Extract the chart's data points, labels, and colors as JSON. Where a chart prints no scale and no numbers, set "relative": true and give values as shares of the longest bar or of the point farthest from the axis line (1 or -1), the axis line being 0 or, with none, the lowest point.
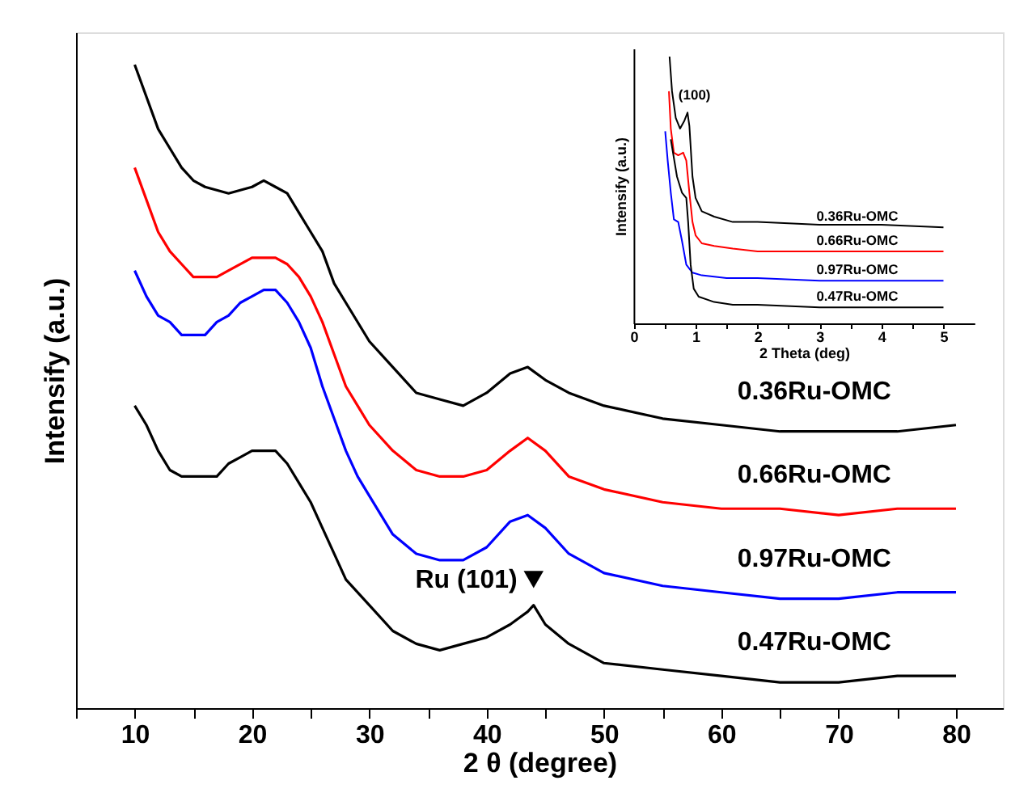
{
  "chart_data": [
    {
      "type": "line",
      "relative": true,
      "xlabel": "2 θ (degree)",
      "ylabel": "Intensify (a.u.)",
      "xlim": [
        5,
        84
      ],
      "xticks": [
        {
          "value": 5,
          "label": null
        },
        10,
        {
          "value": 15,
          "label": null
        },
        20,
        {
          "value": 25,
          "label": null
        },
        30,
        {
          "value": 35,
          "label": null
        },
        40,
        {
          "value": 45,
          "label": null
        },
        50,
        {
          "value": 55,
          "label": null
        },
        60,
        {
          "value": 65,
          "label": null
        },
        70,
        {
          "value": 75,
          "label": null
        },
        80
      ],
      "tick_labels": "x",
      "grid": false,
      "legend": false,
      "marker": "none",
      "line_style": "solid",
      "series": [
        {
          "name": "0.36Ru-OMC",
          "color": "#000000",
          "x": [
            10,
            11,
            12,
            13,
            14,
            15,
            16,
            18,
            20,
            21,
            22,
            23,
            24,
            25,
            26,
            27,
            28,
            30,
            32,
            34,
            36,
            38,
            40,
            42,
            43.5,
            45,
            47,
            50,
            55,
            60,
            65,
            70,
            75,
            80
          ],
          "values": [
            1.0,
            0.95,
            0.9,
            0.87,
            0.84,
            0.82,
            0.81,
            0.8,
            0.81,
            0.82,
            0.81,
            0.8,
            0.77,
            0.74,
            0.71,
            0.66,
            0.63,
            0.57,
            0.53,
            0.49,
            0.48,
            0.47,
            0.49,
            0.52,
            0.53,
            0.51,
            0.49,
            0.47,
            0.45,
            0.44,
            0.43,
            0.43,
            0.43,
            0.44
          ]
        },
        {
          "name": "0.66Ru-OMC",
          "color": "#ff0000",
          "x": [
            10,
            11,
            12,
            13,
            14,
            15,
            16,
            17,
            18,
            20,
            22,
            23,
            24,
            25,
            26,
            27,
            28,
            29,
            30,
            32,
            34,
            36,
            38,
            40,
            42,
            43.5,
            45,
            47,
            50,
            55,
            60,
            65,
            70,
            75,
            80
          ],
          "values": [
            0.84,
            0.79,
            0.74,
            0.71,
            0.69,
            0.67,
            0.67,
            0.67,
            0.68,
            0.7,
            0.7,
            0.69,
            0.67,
            0.64,
            0.6,
            0.55,
            0.5,
            0.47,
            0.44,
            0.4,
            0.37,
            0.36,
            0.36,
            0.37,
            0.4,
            0.42,
            0.4,
            0.36,
            0.34,
            0.32,
            0.31,
            0.31,
            0.3,
            0.31,
            0.31
          ]
        },
        {
          "name": "0.97Ru-OMC",
          "color": "#0000ff",
          "x": [
            10,
            11,
            12,
            13,
            14,
            15,
            16,
            17,
            18,
            19,
            20,
            21,
            22,
            23,
            24,
            25,
            26,
            27,
            28,
            29,
            30,
            32,
            34,
            36,
            38,
            40,
            42,
            43.5,
            45,
            47,
            50,
            55,
            60,
            65,
            70,
            75,
            80
          ],
          "values": [
            0.68,
            0.64,
            0.61,
            0.6,
            0.58,
            0.58,
            0.58,
            0.6,
            0.61,
            0.63,
            0.64,
            0.65,
            0.65,
            0.63,
            0.6,
            0.56,
            0.5,
            0.45,
            0.4,
            0.36,
            0.33,
            0.27,
            0.24,
            0.23,
            0.23,
            0.25,
            0.29,
            0.3,
            0.28,
            0.24,
            0.21,
            0.19,
            0.18,
            0.17,
            0.17,
            0.18,
            0.18
          ]
        },
        {
          "name": "0.47Ru-OMC",
          "color": "#000000",
          "x": [
            10,
            11,
            12,
            13,
            14,
            15,
            17,
            18,
            19,
            20,
            21,
            22,
            23,
            24,
            25,
            26,
            27,
            28,
            30,
            32,
            34,
            36,
            38,
            40,
            42,
            43.5,
            44,
            45,
            47,
            50,
            55,
            60,
            65,
            70,
            75,
            78,
            80
          ],
          "values": [
            0.47,
            0.44,
            0.4,
            0.37,
            0.36,
            0.36,
            0.36,
            0.38,
            0.39,
            0.4,
            0.4,
            0.4,
            0.38,
            0.35,
            0.32,
            0.28,
            0.24,
            0.2,
            0.16,
            0.12,
            0.1,
            0.09,
            0.1,
            0.11,
            0.13,
            0.15,
            0.16,
            0.13,
            0.1,
            0.07,
            0.06,
            0.05,
            0.04,
            0.04,
            0.05,
            0.05,
            0.05
          ]
        }
      ],
      "annotations": [
        {
          "text": "Ru (101)",
          "x": 44,
          "y": 0.2
        }
      ]
    },
    {
      "type": "line",
      "relative": true,
      "xlabel": "2 Theta (deg)",
      "ylabel": "Intensify (a.u.)",
      "xlim": [
        0,
        5.5
      ],
      "xticks": [
        0,
        {
          "value": 0.5,
          "label": null
        },
        1,
        {
          "value": 1.5,
          "label": null
        },
        2,
        {
          "value": 2.5,
          "label": null
        },
        3,
        {
          "value": 3.5,
          "label": null
        },
        4,
        {
          "value": 4.5,
          "label": null
        },
        5
      ],
      "tick_labels": "x",
      "grid": false,
      "legend": false,
      "marker": "none",
      "line_style": "solid",
      "series": [
        {
          "name": "0.36Ru-OMC",
          "color": "#000000",
          "x": [
            0.58,
            0.62,
            0.68,
            0.75,
            0.82,
            0.87,
            0.9,
            0.95,
            1.0,
            1.1,
            1.3,
            1.6,
            2,
            3,
            4,
            5
          ],
          "values": [
            1.0,
            0.87,
            0.77,
            0.73,
            0.76,
            0.79,
            0.74,
            0.55,
            0.47,
            0.42,
            0.4,
            0.38,
            0.38,
            0.37,
            0.37,
            0.36
          ]
        },
        {
          "name": "0.66Ru-OMC",
          "color": "#ff0000",
          "x": [
            0.57,
            0.6,
            0.65,
            0.72,
            0.8,
            0.85,
            0.9,
            0.95,
            1.0,
            1.1,
            1.3,
            1.6,
            2,
            3,
            4,
            5
          ],
          "values": [
            0.87,
            0.73,
            0.64,
            0.63,
            0.64,
            0.61,
            0.49,
            0.38,
            0.33,
            0.3,
            0.29,
            0.28,
            0.27,
            0.27,
            0.27,
            0.27
          ]
        },
        {
          "name": "0.97Ru-OMC",
          "color": "#0000ff",
          "x": [
            0.51,
            0.55,
            0.6,
            0.65,
            0.72,
            0.78,
            0.85,
            0.95,
            1.1,
            1.5,
            2,
            3,
            4,
            5
          ],
          "values": [
            0.72,
            0.61,
            0.49,
            0.39,
            0.38,
            0.31,
            0.22,
            0.19,
            0.18,
            0.17,
            0.17,
            0.16,
            0.16,
            0.16
          ]
        },
        {
          "name": "0.47Ru-OMC",
          "color": "#000000",
          "x": [
            0.6,
            0.7,
            0.78,
            0.85,
            0.88,
            0.92,
            0.97,
            1.05,
            1.3,
            1.6,
            2,
            3,
            4,
            5
          ],
          "values": [
            0.69,
            0.55,
            0.49,
            0.47,
            0.38,
            0.22,
            0.13,
            0.1,
            0.08,
            0.07,
            0.07,
            0.06,
            0.06,
            0.06
          ]
        }
      ],
      "annotations": [
        {
          "text": "(100)",
          "x": 0.88,
          "y": 0.79
        }
      ]
    }
  ]
}
